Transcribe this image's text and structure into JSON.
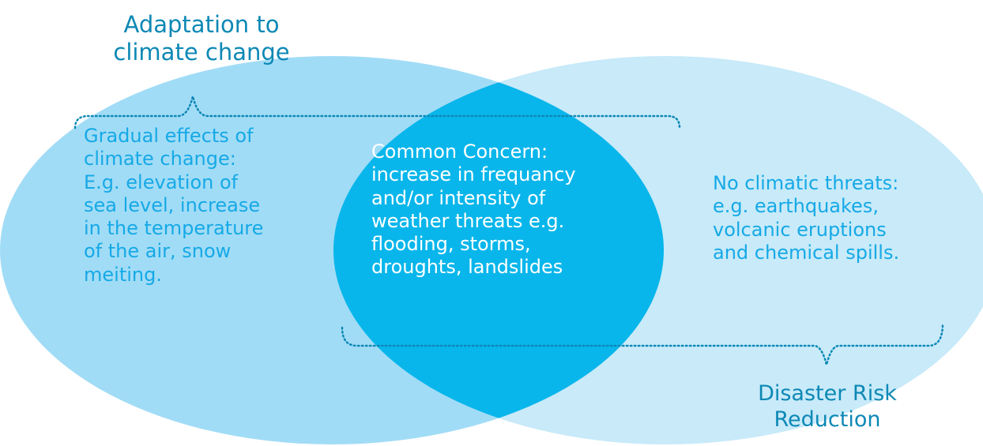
{
  "diagram": {
    "left_set": {
      "title": [
        "Adaptation to",
        "climate change"
      ],
      "description": [
        "Gradual effects of",
        "climate change:",
        "E.g. elevation of",
        "sea level, increase",
        "in the temperature",
        "of the air, snow",
        "meiting."
      ]
    },
    "intersection": {
      "description": [
        "Common Concern:",
        "increase in frequancy",
        "and/or intensity of",
        "weather threats e.g.",
        "flooding, storms,",
        "droughts, landslides"
      ]
    },
    "right_set": {
      "title": [
        "Disaster Risk",
        "Reduction"
      ],
      "description": [
        "No climatic threats:",
        "e.g. earthquakes,",
        "volcanic eruptions",
        "and chemical spills."
      ]
    },
    "colors": {
      "left_circle": "#a1dcf6",
      "right_circle": "#c8eaf9",
      "intersection": "#08b6eb",
      "title_text": "#0d88b5",
      "side_text": "#16a9e6",
      "bracket": "#0d88b5"
    }
  }
}
